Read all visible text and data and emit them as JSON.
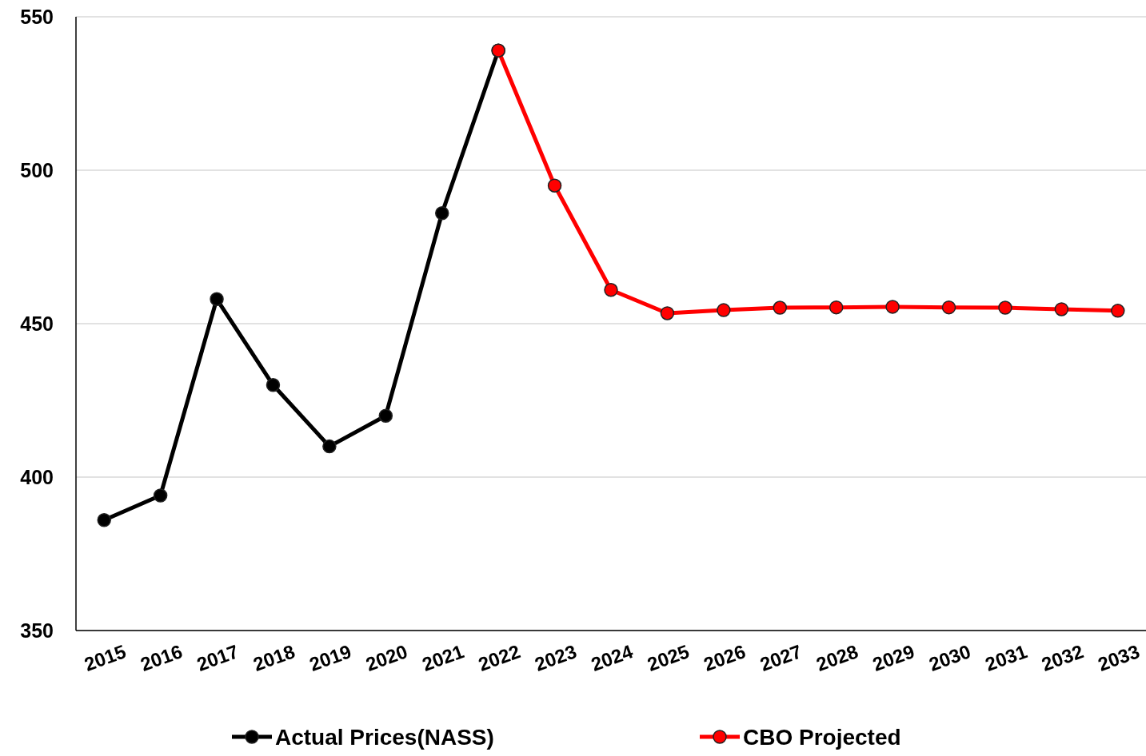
{
  "chart_data": {
    "type": "line",
    "categories": [
      "2015",
      "2016",
      "2017",
      "2018",
      "2019",
      "2020",
      "2021",
      "2022",
      "2023",
      "2024",
      "2025",
      "2026",
      "2027",
      "2028",
      "2029",
      "2030",
      "2031",
      "2032",
      "2033"
    ],
    "series": [
      {
        "name": "Actual Prices(NASS)",
        "color": "#000000",
        "values": [
          386,
          394,
          458,
          430,
          410,
          420,
          486,
          539,
          null,
          null,
          null,
          null,
          null,
          null,
          null,
          null,
          null,
          null,
          null
        ]
      },
      {
        "name": "CBO Projected",
        "color": "#ff0000",
        "values": [
          null,
          null,
          null,
          null,
          null,
          null,
          null,
          539,
          495,
          461,
          453.4,
          454.4,
          455.2,
          455.3,
          455.5,
          455.3,
          455.2,
          454.7,
          454.2
        ]
      }
    ],
    "ylim": [
      350,
      550
    ],
    "yticks": [
      350,
      400,
      450,
      500,
      550
    ],
    "grid": "y",
    "legend": "bottom",
    "marker": "circle",
    "line_style": "solid"
  }
}
